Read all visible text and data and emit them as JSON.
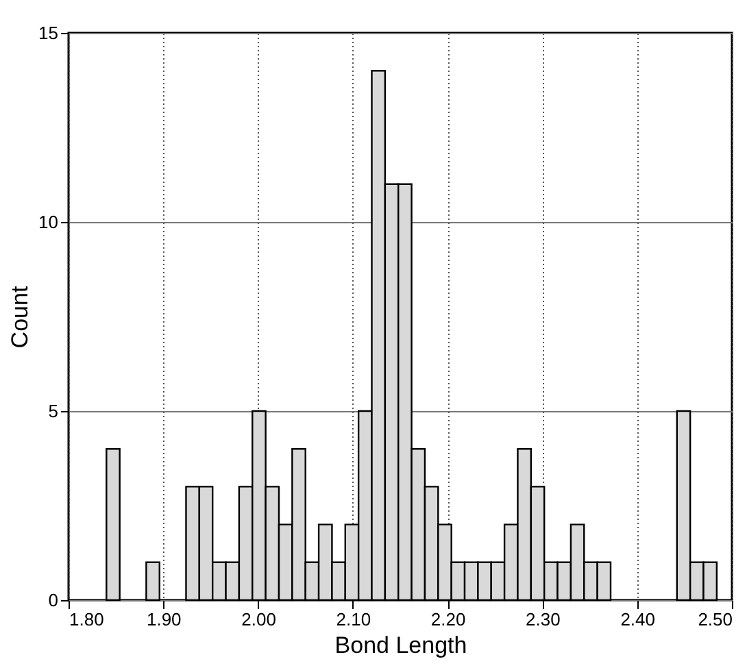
{
  "chart_data": {
    "type": "histogram",
    "xlabel": "Bond Length",
    "ylabel": "Count",
    "bins": [
      1.84,
      1.854,
      1.868,
      1.882,
      1.896,
      1.91,
      1.924,
      1.938,
      1.952,
      1.966,
      1.98,
      1.994,
      2.008,
      2.022,
      2.036,
      2.05,
      2.064,
      2.078,
      2.092,
      2.106,
      2.12,
      2.134,
      2.148,
      2.162,
      2.176,
      2.19,
      2.204,
      2.218,
      2.232,
      2.246,
      2.26,
      2.274,
      2.288,
      2.302,
      2.316,
      2.33,
      2.344,
      2.358,
      2.372,
      2.386,
      2.4,
      2.414,
      2.428,
      2.442,
      2.456,
      2.47,
      2.484
    ],
    "values": [
      4,
      0,
      0,
      1,
      0,
      0,
      3,
      3,
      1,
      1,
      3,
      5,
      3,
      2,
      4,
      1,
      2,
      1,
      2,
      5,
      14,
      11,
      11,
      4,
      3,
      2,
      1,
      1,
      1,
      1,
      2,
      4,
      3,
      1,
      1,
      2,
      1,
      1,
      0,
      0,
      0,
      0,
      0,
      5,
      1,
      1
    ],
    "color": "#d9d9d9",
    "xlim": [
      1.8,
      2.5
    ],
    "xticks": [
      {
        "value": 1.8,
        "label": "1.80"
      },
      {
        "value": 1.9,
        "label": "1.90"
      },
      {
        "value": 2.0,
        "label": "2.00"
      },
      {
        "value": 2.1,
        "label": "2.10"
      },
      {
        "value": 2.2,
        "label": "2.20"
      },
      {
        "value": 2.3,
        "label": "2.30"
      },
      {
        "value": 2.4,
        "label": "2.40"
      },
      {
        "value": 2.5,
        "label": "2.50"
      }
    ],
    "ylim": [
      0,
      15
    ],
    "yticks": [
      0,
      5,
      10,
      15
    ],
    "grid": true
  }
}
